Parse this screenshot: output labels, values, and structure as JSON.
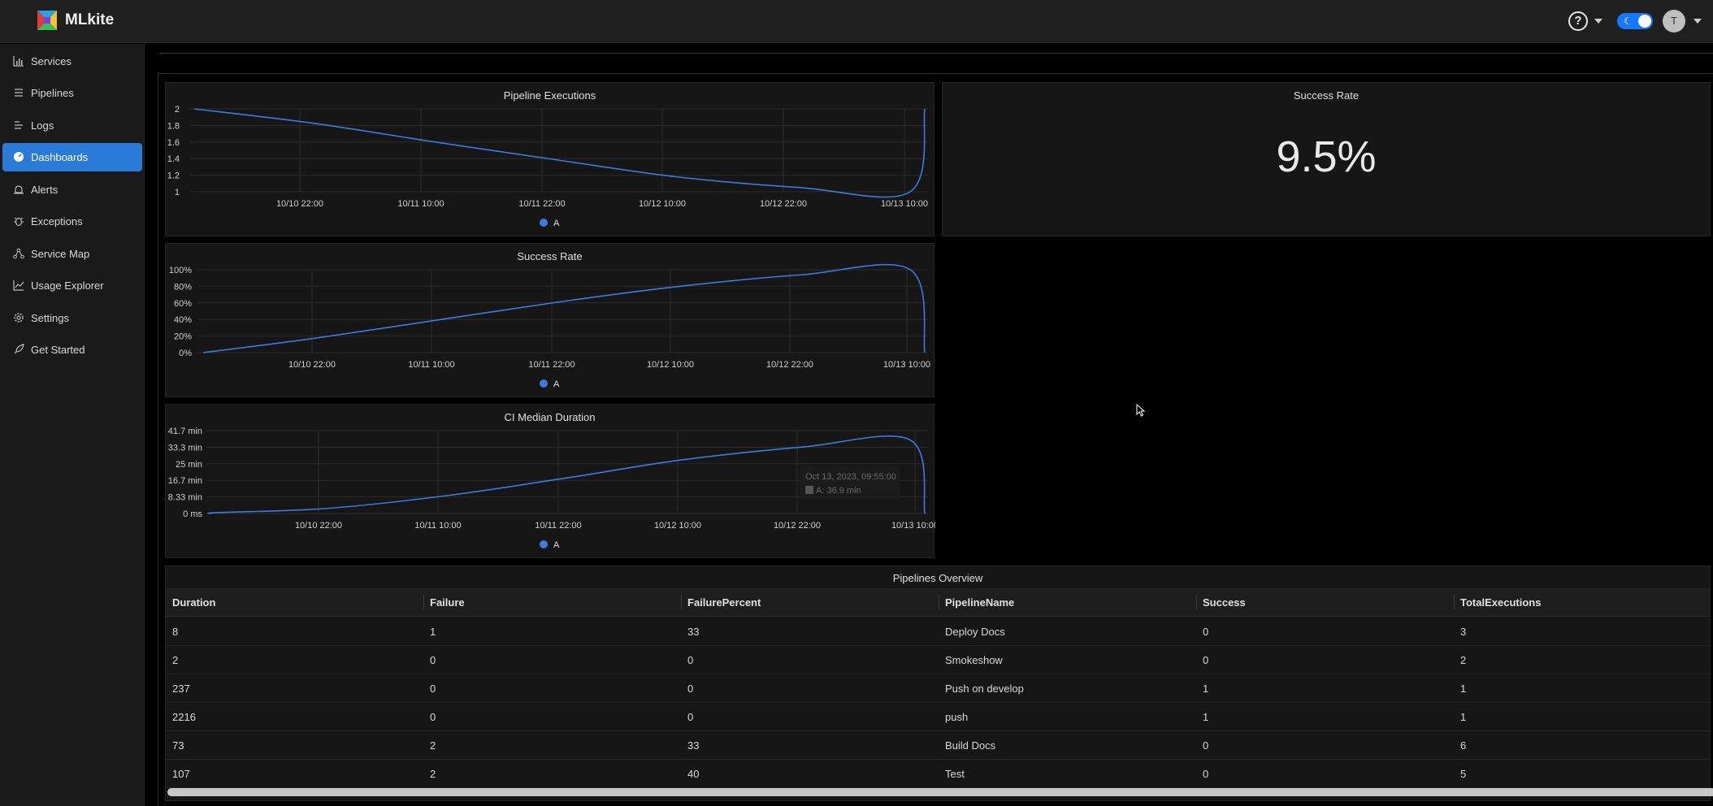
{
  "app": {
    "brand": "MLkite",
    "avatar_initial": "T"
  },
  "sidebar": {
    "items": [
      {
        "label": "Services",
        "icon": "bar-chart-icon",
        "active": false
      },
      {
        "label": "Pipelines",
        "icon": "list-icon",
        "active": false
      },
      {
        "label": "Logs",
        "icon": "logs-icon",
        "active": false
      },
      {
        "label": "Dashboards",
        "icon": "dashboard-icon",
        "active": true
      },
      {
        "label": "Alerts",
        "icon": "alarm-icon",
        "active": false
      },
      {
        "label": "Exceptions",
        "icon": "bug-icon",
        "active": false
      },
      {
        "label": "Service Map",
        "icon": "deployment-icon",
        "active": false
      },
      {
        "label": "Usage Explorer",
        "icon": "line-chart-icon",
        "active": false
      },
      {
        "label": "Settings",
        "icon": "gear-icon",
        "active": false
      },
      {
        "label": "Get Started",
        "icon": "rocket-icon",
        "active": false
      }
    ]
  },
  "colors": {
    "accent": "#2a7ad8",
    "series": "#3d7be0"
  },
  "panels": {
    "success_rate_value": {
      "title": "Success Rate",
      "value": "9.5%"
    }
  },
  "chart_data": [
    {
      "type": "line",
      "title": "Pipeline Executions",
      "x_ticks": [
        "10/10 22:00",
        "10/11 10:00",
        "10/11 22:00",
        "10/12 10:00",
        "10/12 22:00",
        "10/13 10:00"
      ],
      "y_ticks": [
        "2",
        "1.8",
        "1.6",
        "1.4",
        "1.2",
        "1"
      ],
      "ylim": [
        1,
        2
      ],
      "legend": [
        "A"
      ],
      "series": [
        {
          "name": "A",
          "x": [
            0,
            0.16,
            0.33,
            0.5,
            0.66,
            0.83,
            0.98,
            1
          ],
          "y": [
            2,
            1.83,
            1.6,
            1.38,
            1.18,
            1.05,
            1.0,
            2
          ]
        }
      ]
    },
    {
      "type": "line",
      "title": "Success Rate",
      "x_ticks": [
        "10/10 22:00",
        "10/11 10:00",
        "10/11 22:00",
        "10/12 10:00",
        "10/12 22:00",
        "10/13 10:00"
      ],
      "y_ticks": [
        "100%",
        "80%",
        "60%",
        "40%",
        "20%",
        "0%"
      ],
      "ylim": [
        0,
        100
      ],
      "legend": [
        "A"
      ],
      "series": [
        {
          "name": "A",
          "x": [
            0,
            0.16,
            0.33,
            0.5,
            0.66,
            0.83,
            0.98,
            1
          ],
          "y": [
            0,
            18,
            40,
            62,
            80,
            94,
            100,
            0
          ]
        }
      ]
    },
    {
      "type": "line",
      "title": "CI Median Duration",
      "x_ticks": [
        "10/10 22:00",
        "10/11 10:00",
        "10/11 22:00",
        "10/12 10:00",
        "10/12 22:00",
        "10/13 10:00"
      ],
      "y_ticks": [
        "41.7 min",
        "33.3 min",
        "25 min",
        "16.7 min",
        "8.33 min",
        "0 ms"
      ],
      "ylim": [
        0,
        41.7
      ],
      "legend": [
        "A"
      ],
      "tooltip": {
        "date": "Oct 13, 2023, 09:55:00",
        "value": "A: 36.9 min"
      },
      "series": [
        {
          "name": "A",
          "x": [
            0,
            0.01,
            0.16,
            0.33,
            0.5,
            0.66,
            0.83,
            0.98,
            1
          ],
          "y": [
            0,
            0.5,
            2.5,
            9,
            18,
            27,
            33.5,
            36.9,
            0
          ]
        }
      ]
    }
  ],
  "table": {
    "title": "Pipelines Overview",
    "columns": [
      "Duration",
      "Failure",
      "FailurePercent",
      "PipelineName",
      "Success",
      "TotalExecutions"
    ],
    "rows": [
      [
        "8",
        "1",
        "33",
        "Deploy Docs",
        "0",
        "3"
      ],
      [
        "2",
        "0",
        "0",
        "Smokeshow",
        "0",
        "2"
      ],
      [
        "237",
        "0",
        "0",
        "Push on develop",
        "1",
        "1"
      ],
      [
        "2216",
        "0",
        "0",
        "push",
        "1",
        "1"
      ],
      [
        "73",
        "2",
        "33",
        "Build Docs",
        "0",
        "6"
      ],
      [
        "107",
        "2",
        "40",
        "Test",
        "0",
        "5"
      ]
    ]
  }
}
